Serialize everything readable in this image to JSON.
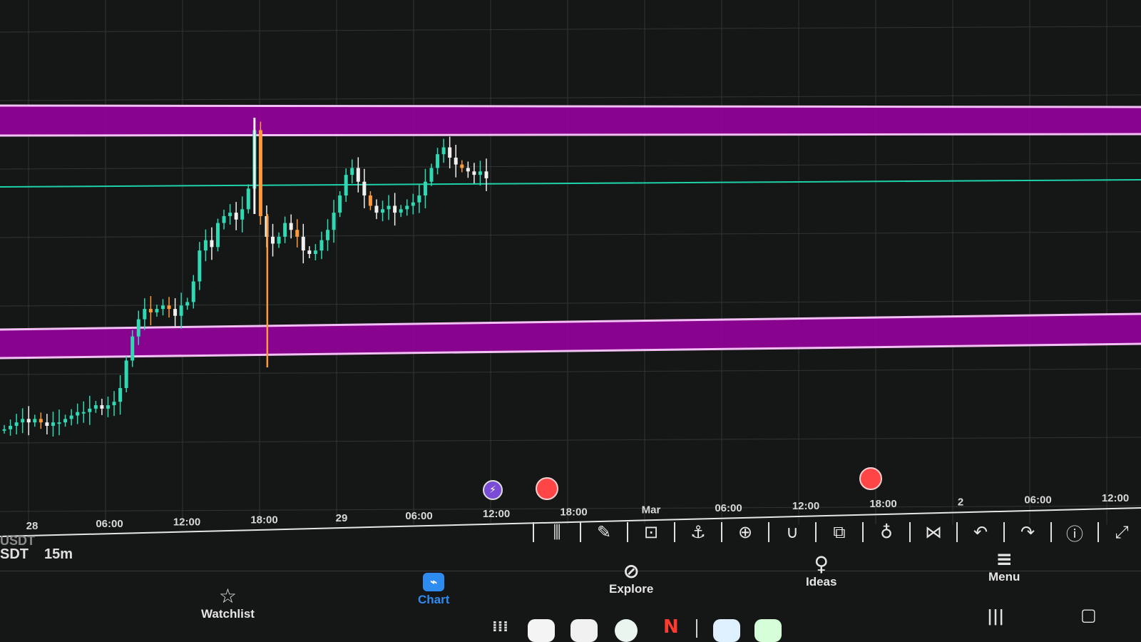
{
  "colors": {
    "background": "#151716",
    "zone_fill": "#a200a8",
    "zone_edge": "#f2c0f5",
    "level_line": "#1fd1a8",
    "candle_up": "#2fd9b4",
    "candle_down": "#ff9a3c",
    "candle_neutral": "#f0f0f0",
    "accent": "#2e8cf0",
    "marker_red": "#ff4545",
    "marker_purple": "#7a4cd6"
  },
  "time_axis": {
    "labels": [
      "28",
      "06:00",
      "12:00",
      "18:00",
      "29",
      "06:00",
      "12:00",
      "18:00",
      "Mar",
      "06:00",
      "12:00",
      "18:00",
      "2",
      "06:00",
      "12:00"
    ]
  },
  "symbol": {
    "ghost_text": "USDT",
    "main_text": "SDT",
    "interval": "15m"
  },
  "toolbar": {
    "tools": [
      {
        "icon": "candles-icon",
        "glyph": "⫼"
      },
      {
        "icon": "brush-icon",
        "glyph": "✎"
      },
      {
        "icon": "text-tool-icon",
        "glyph": "⊡"
      },
      {
        "icon": "anchor-icon",
        "glyph": "⚓"
      },
      {
        "icon": "target-icon",
        "glyph": "⊕"
      },
      {
        "icon": "magnet-icon",
        "glyph": "∪"
      },
      {
        "icon": "layers-icon",
        "glyph": "⧉"
      },
      {
        "icon": "lightbulb-icon",
        "glyph": "♁"
      },
      {
        "icon": "share-icon",
        "glyph": "⋈"
      },
      {
        "icon": "undo-icon",
        "glyph": "↶"
      },
      {
        "icon": "redo-icon",
        "glyph": "↷"
      },
      {
        "icon": "info-icon",
        "glyph": "ⓘ"
      },
      {
        "icon": "trend-icon",
        "glyph": "⤢"
      }
    ]
  },
  "bottom_nav": {
    "watchlist": "Watchlist",
    "chart": "Chart",
    "explore": "Explore",
    "ideas": "Ideas",
    "menu": "Menu"
  },
  "system_bar": {
    "apps_glyph": "⁞⁞⁞",
    "netflix_letter": "N",
    "recents_glyph": "|||",
    "home_glyph": "▢"
  },
  "chart_data": {
    "type": "candlestick",
    "timeframe": "15m",
    "x_axis_labels": [
      "28",
      "06:00",
      "12:00",
      "18:00",
      "29",
      "06:00",
      "12:00",
      "18:00",
      "Mar",
      "06:00",
      "12:00",
      "18:00",
      "2",
      "06:00",
      "12:00"
    ],
    "price_series_normalized": [
      0.1,
      0.11,
      0.12,
      0.13,
      0.12,
      0.13,
      0.12,
      0.11,
      0.12,
      0.12,
      0.13,
      0.14,
      0.15,
      0.15,
      0.16,
      0.17,
      0.16,
      0.17,
      0.18,
      0.22,
      0.3,
      0.37,
      0.42,
      0.45,
      0.44,
      0.45,
      0.46,
      0.45,
      0.43,
      0.46,
      0.47,
      0.53,
      0.62,
      0.65,
      0.63,
      0.7,
      0.72,
      0.73,
      0.71,
      0.74,
      0.8,
      0.97,
      0.72,
      0.66,
      0.64,
      0.66,
      0.7,
      0.68,
      0.66,
      0.62,
      0.61,
      0.62,
      0.65,
      0.68,
      0.73,
      0.78,
      0.84,
      0.86,
      0.82,
      0.78,
      0.75,
      0.73,
      0.74,
      0.75,
      0.73,
      0.74,
      0.75,
      0.76,
      0.78,
      0.82,
      0.86,
      0.9,
      0.92,
      0.89,
      0.87,
      0.86,
      0.85,
      0.84,
      0.85,
      0.83
    ],
    "horizontal_zones": [
      {
        "name": "resistance-zone"
      },
      {
        "name": "support-zone"
      }
    ],
    "horizontal_lines": [
      {
        "name": "level-line"
      }
    ],
    "grid": true
  }
}
